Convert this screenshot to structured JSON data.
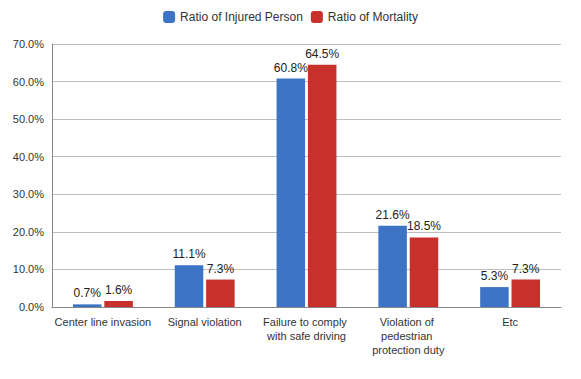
{
  "chart_data": {
    "type": "bar",
    "categories": [
      "Center line invasion",
      "Signal violation",
      "Failure to comply with safe driving",
      "Violation of pedestrian protection duty",
      "Etc"
    ],
    "series": [
      {
        "name": "Ratio of Injured Person",
        "color": "#3c73c4",
        "values": [
          0.7,
          11.1,
          60.8,
          21.6,
          5.3
        ],
        "value_labels": [
          "0.7%",
          "11.1%",
          "60.8%",
          "21.6%",
          "5.3%"
        ]
      },
      {
        "name": "Ratio of Mortality",
        "color": "#c8302b",
        "values": [
          1.6,
          7.3,
          64.5,
          18.5,
          7.3
        ],
        "value_labels": [
          "1.6%",
          "7.3%",
          "64.5%",
          "18.5%",
          "7.3%"
        ]
      }
    ],
    "ylim": [
      0,
      70
    ],
    "yticks": [
      {
        "value": 0,
        "label": "0.0%"
      },
      {
        "value": 10,
        "label": "10.0%"
      },
      {
        "value": 20,
        "label": "20.0%"
      },
      {
        "value": 30,
        "label": "30.0%"
      },
      {
        "value": 40,
        "label": "40.0%"
      },
      {
        "value": 50,
        "label": "50.0%"
      },
      {
        "value": 60,
        "label": "60.0%"
      },
      {
        "value": 70,
        "label": "70.0%"
      }
    ],
    "grid": true,
    "legend": "top",
    "data_labels": true
  }
}
